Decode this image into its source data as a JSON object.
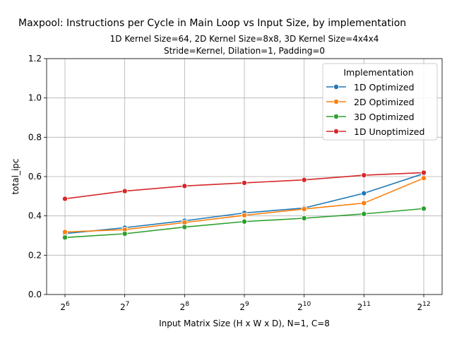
{
  "chart_data": {
    "type": "line",
    "title": "Maxpool: Instructions per Cycle in Main Loop vs Input Size, by implementation",
    "subtitle_lines": [
      "1D Kernel Size=64, 2D Kernel Size=8x8, 3D Kernel Size=4x4x4",
      "Stride=Kernel, Dilation=1, Padding=0"
    ],
    "xlabel": "Input Matrix Size (H x W x D), N=1, C=8",
    "ylabel": "total_ipc",
    "x_scale": "log2",
    "x": [
      64,
      128,
      256,
      512,
      1024,
      2048,
      4096
    ],
    "x_tick_labels": [
      {
        "base": "2",
        "exp": "6"
      },
      {
        "base": "2",
        "exp": "7"
      },
      {
        "base": "2",
        "exp": "8"
      },
      {
        "base": "2",
        "exp": "9"
      },
      {
        "base": "2",
        "exp": "10"
      },
      {
        "base": "2",
        "exp": "11"
      },
      {
        "base": "2",
        "exp": "12"
      }
    ],
    "ylim": [
      0,
      1.2
    ],
    "y_ticks": [
      "0.0",
      "0.2",
      "0.4",
      "0.6",
      "0.8",
      "1.0",
      "1.2"
    ],
    "grid": true,
    "legend": {
      "title": "Implementation",
      "position": "top-right"
    },
    "series": [
      {
        "name": "1D Optimized",
        "color": "#1f77b4",
        "values": [
          0.31,
          0.34,
          0.375,
          0.415,
          0.44,
          0.515,
          0.615
        ]
      },
      {
        "name": "2D Optimized",
        "color": "#ff7f0e",
        "values": [
          0.318,
          0.33,
          0.366,
          0.403,
          0.435,
          0.465,
          0.592
        ]
      },
      {
        "name": "3D Optimized",
        "color": "#2ca02c",
        "values": [
          0.29,
          0.309,
          0.343,
          0.371,
          0.388,
          0.41,
          0.437
        ]
      },
      {
        "name": "1D Unoptimized",
        "color": "#d62728",
        "values": [
          0.487,
          0.526,
          0.552,
          0.568,
          0.583,
          0.607,
          0.62
        ]
      }
    ]
  }
}
